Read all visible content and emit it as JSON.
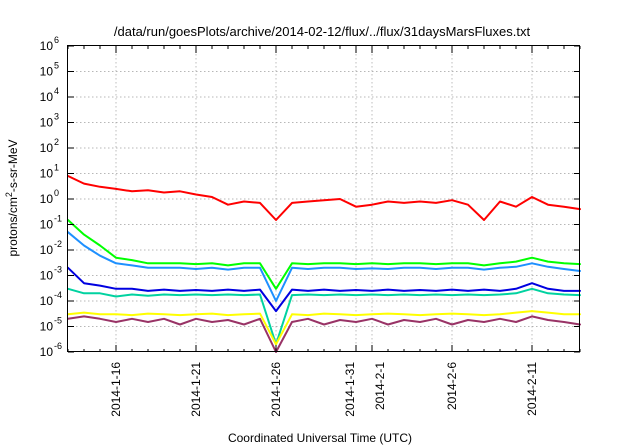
{
  "chart_data": {
    "type": "line",
    "title": "/data/run/goesPlots/archive/2014-02-12/flux/../flux/31daysMarsFluxes.txt",
    "xlabel": "Coordinated Universal Time (UTC)",
    "ylabel": "protons/cm2-s-sr-MeV",
    "ylabel_parts": {
      "before": "protons/cm",
      "sup": "2",
      "after": "-s-sr-MeV"
    },
    "yscale": "log",
    "ylim": [
      1e-06,
      1000000.0
    ],
    "xlim": [
      "2014-01-13",
      "2014-02-14"
    ],
    "grid": true,
    "legend": "none",
    "yticks": [
      {
        "exp": "-6",
        "value": 1e-06
      },
      {
        "exp": "-5",
        "value": 1e-05
      },
      {
        "exp": "-4",
        "value": 0.0001
      },
      {
        "exp": "-3",
        "value": 0.001
      },
      {
        "exp": "-2",
        "value": 0.01
      },
      {
        "exp": "-1",
        "value": 0.1
      },
      {
        "exp": "0",
        "value": 1
      },
      {
        "exp": "1",
        "value": 10
      },
      {
        "exp": "2",
        "value": 100
      },
      {
        "exp": "3",
        "value": 1000
      },
      {
        "exp": "4",
        "value": 10000
      },
      {
        "exp": "5",
        "value": 100000
      },
      {
        "exp": "6",
        "value": 1000000
      }
    ],
    "ytick_base": "10",
    "xticks": [
      {
        "date": "2014-01-16",
        "label": "2014-1-16"
      },
      {
        "date": "2014-01-21",
        "label": "2014-1-21"
      },
      {
        "date": "2014-01-26",
        "label": "2014-1-26"
      },
      {
        "date": "2014-01-31",
        "label": "2014-1-31"
      },
      {
        "date": "2014-02-01",
        "label": "2014-2-1"
      },
      {
        "date": "2014-02-06",
        "label": "2014-2-6"
      },
      {
        "date": "2014-02-11",
        "label": "2014-2-11"
      }
    ],
    "series": [
      {
        "color": "#ff0000",
        "x": [
          "2014-01-13",
          "2014-01-14",
          "2014-01-15",
          "2014-01-16",
          "2014-01-17",
          "2014-01-18",
          "2014-01-19",
          "2014-01-20",
          "2014-01-21",
          "2014-01-22",
          "2014-01-23",
          "2014-01-24",
          "2014-01-25",
          "2014-01-26",
          "2014-01-27",
          "2014-01-28",
          "2014-01-29",
          "2014-01-30",
          "2014-01-31",
          "2014-02-01",
          "2014-02-02",
          "2014-02-03",
          "2014-02-04",
          "2014-02-05",
          "2014-02-06",
          "2014-02-07",
          "2014-02-08",
          "2014-02-09",
          "2014-02-10",
          "2014-02-11",
          "2014-02-12",
          "2014-02-13",
          "2014-02-14"
        ],
        "y": [
          8,
          4,
          3,
          2.5,
          2,
          2.2,
          1.8,
          2,
          1.5,
          1.2,
          0.6,
          0.8,
          0.7,
          0.15,
          0.7,
          0.8,
          0.9,
          1,
          0.5,
          0.6,
          0.8,
          0.7,
          0.8,
          0.7,
          0.9,
          0.6,
          0.15,
          0.8,
          0.5,
          1.2,
          0.6,
          0.5,
          0.4
        ]
      },
      {
        "color": "#00ff00",
        "x": [
          "2014-01-13",
          "2014-01-14",
          "2014-01-15",
          "2014-01-16",
          "2014-01-17",
          "2014-01-18",
          "2014-01-19",
          "2014-01-20",
          "2014-01-21",
          "2014-01-22",
          "2014-01-23",
          "2014-01-24",
          "2014-01-25",
          "2014-01-26",
          "2014-01-27",
          "2014-01-28",
          "2014-01-29",
          "2014-01-30",
          "2014-01-31",
          "2014-02-01",
          "2014-02-02",
          "2014-02-03",
          "2014-02-04",
          "2014-02-05",
          "2014-02-06",
          "2014-02-07",
          "2014-02-08",
          "2014-02-09",
          "2014-02-10",
          "2014-02-11",
          "2014-02-12",
          "2014-02-13",
          "2014-02-14"
        ],
        "y": [
          0.15,
          0.04,
          0.015,
          0.005,
          0.004,
          0.003,
          0.003,
          0.003,
          0.0028,
          0.003,
          0.0025,
          0.003,
          0.003,
          0.0003,
          0.003,
          0.0028,
          0.003,
          0.003,
          0.0028,
          0.003,
          0.0028,
          0.003,
          0.003,
          0.0028,
          0.003,
          0.003,
          0.0025,
          0.003,
          0.0035,
          0.005,
          0.0035,
          0.003,
          0.0028
        ]
      },
      {
        "color": "#1e90ff",
        "x": [
          "2014-01-13",
          "2014-01-14",
          "2014-01-15",
          "2014-01-16",
          "2014-01-17",
          "2014-01-18",
          "2014-01-19",
          "2014-01-20",
          "2014-01-21",
          "2014-01-22",
          "2014-01-23",
          "2014-01-24",
          "2014-01-25",
          "2014-01-26",
          "2014-01-27",
          "2014-01-28",
          "2014-01-29",
          "2014-01-30",
          "2014-01-31",
          "2014-02-01",
          "2014-02-02",
          "2014-02-03",
          "2014-02-04",
          "2014-02-05",
          "2014-02-06",
          "2014-02-07",
          "2014-02-08",
          "2014-02-09",
          "2014-02-10",
          "2014-02-11",
          "2014-02-12",
          "2014-02-13",
          "2014-02-14"
        ],
        "y": [
          0.05,
          0.015,
          0.006,
          0.003,
          0.0025,
          0.002,
          0.002,
          0.002,
          0.0018,
          0.002,
          0.0017,
          0.002,
          0.002,
          0.0001,
          0.002,
          0.0018,
          0.002,
          0.002,
          0.0018,
          0.0019,
          0.0018,
          0.002,
          0.002,
          0.0018,
          0.002,
          0.002,
          0.0017,
          0.002,
          0.0022,
          0.003,
          0.0022,
          0.0018,
          0.0015
        ]
      },
      {
        "color": "#00d2a0",
        "x": [
          "2014-01-13",
          "2014-01-14",
          "2014-01-15",
          "2014-01-16",
          "2014-01-17",
          "2014-01-18",
          "2014-01-19",
          "2014-01-20",
          "2014-01-21",
          "2014-01-22",
          "2014-01-23",
          "2014-01-24",
          "2014-01-25",
          "2014-01-26",
          "2014-01-27",
          "2014-01-28",
          "2014-01-29",
          "2014-01-30",
          "2014-01-31",
          "2014-02-01",
          "2014-02-02",
          "2014-02-03",
          "2014-02-04",
          "2014-02-05",
          "2014-02-06",
          "2014-02-07",
          "2014-02-08",
          "2014-02-09",
          "2014-02-10",
          "2014-02-11",
          "2014-02-12",
          "2014-02-13",
          "2014-02-14"
        ],
        "y": [
          0.0003,
          0.0002,
          0.0002,
          0.00015,
          0.00018,
          0.00016,
          0.00018,
          0.00017,
          0.00018,
          0.00017,
          0.00018,
          0.00017,
          0.00018,
          2e-06,
          0.00017,
          0.00018,
          0.00017,
          0.00018,
          0.00017,
          0.00018,
          0.00017,
          0.00018,
          0.00017,
          0.00018,
          0.00017,
          0.00018,
          0.00017,
          0.00018,
          0.0002,
          0.0003,
          0.0002,
          0.00018,
          0.00017
        ]
      },
      {
        "color": "#0000e0",
        "x": [
          "2014-01-13",
          "2014-01-14",
          "2014-01-15",
          "2014-01-16",
          "2014-01-17",
          "2014-01-18",
          "2014-01-19",
          "2014-01-20",
          "2014-01-21",
          "2014-01-22",
          "2014-01-23",
          "2014-01-24",
          "2014-01-25",
          "2014-01-26",
          "2014-01-27",
          "2014-01-28",
          "2014-01-29",
          "2014-01-30",
          "2014-01-31",
          "2014-02-01",
          "2014-02-02",
          "2014-02-03",
          "2014-02-04",
          "2014-02-05",
          "2014-02-06",
          "2014-02-07",
          "2014-02-08",
          "2014-02-09",
          "2014-02-10",
          "2014-02-11",
          "2014-02-12",
          "2014-02-13",
          "2014-02-14"
        ],
        "y": [
          0.002,
          0.0005,
          0.0004,
          0.0003,
          0.0003,
          0.00025,
          0.00028,
          0.00025,
          0.00027,
          0.00025,
          0.00028,
          0.00025,
          0.00028,
          4e-05,
          0.00028,
          0.00025,
          0.00028,
          0.00025,
          0.00027,
          0.00025,
          0.00028,
          0.00025,
          0.00027,
          0.00025,
          0.00028,
          0.00025,
          0.00028,
          0.00025,
          0.0003,
          0.0005,
          0.0003,
          0.00025,
          0.00025
        ]
      },
      {
        "color": "#ffff00",
        "x": [
          "2014-01-13",
          "2014-01-14",
          "2014-01-15",
          "2014-01-16",
          "2014-01-17",
          "2014-01-18",
          "2014-01-19",
          "2014-01-20",
          "2014-01-21",
          "2014-01-22",
          "2014-01-23",
          "2014-01-24",
          "2014-01-25",
          "2014-01-26",
          "2014-01-27",
          "2014-01-28",
          "2014-01-29",
          "2014-01-30",
          "2014-01-31",
          "2014-02-01",
          "2014-02-02",
          "2014-02-03",
          "2014-02-04",
          "2014-02-05",
          "2014-02-06",
          "2014-02-07",
          "2014-02-08",
          "2014-02-09",
          "2014-02-10",
          "2014-02-11",
          "2014-02-12",
          "2014-02-13",
          "2014-02-14"
        ],
        "y": [
          3e-05,
          3.5e-05,
          3e-05,
          3e-05,
          2.8e-05,
          3.2e-05,
          3e-05,
          2.8e-05,
          3e-05,
          3.2e-05,
          2.8e-05,
          3e-05,
          3.2e-05,
          2e-06,
          3e-05,
          2.8e-05,
          3.2e-05,
          3e-05,
          2.8e-05,
          3e-05,
          3.2e-05,
          3e-05,
          2.8e-05,
          3e-05,
          3.2e-05,
          3e-05,
          2.8e-05,
          3e-05,
          3.5e-05,
          4e-05,
          3.5e-05,
          3e-05,
          3e-05
        ]
      },
      {
        "color": "#993366",
        "x": [
          "2014-01-13",
          "2014-01-14",
          "2014-01-15",
          "2014-01-16",
          "2014-01-17",
          "2014-01-18",
          "2014-01-19",
          "2014-01-20",
          "2014-01-21",
          "2014-01-22",
          "2014-01-23",
          "2014-01-24",
          "2014-01-25",
          "2014-01-26",
          "2014-01-27",
          "2014-01-28",
          "2014-01-29",
          "2014-01-30",
          "2014-01-31",
          "2014-02-01",
          "2014-02-02",
          "2014-02-03",
          "2014-02-04",
          "2014-02-05",
          "2014-02-06",
          "2014-02-07",
          "2014-02-08",
          "2014-02-09",
          "2014-02-10",
          "2014-02-11",
          "2014-02-12",
          "2014-02-13",
          "2014-02-14"
        ],
        "y": [
          2e-05,
          2.5e-05,
          2e-05,
          1.5e-05,
          2e-05,
          1.5e-05,
          2e-05,
          1.2e-05,
          2e-05,
          1.5e-05,
          1.8e-05,
          1.2e-05,
          2e-05,
          1e-06,
          1.5e-05,
          2e-05,
          1.2e-05,
          1.8e-05,
          1.5e-05,
          2e-05,
          1.2e-05,
          1.8e-05,
          1.5e-05,
          2e-05,
          1.2e-05,
          1.8e-05,
          1.5e-05,
          2e-05,
          1.5e-05,
          2.5e-05,
          1.8e-05,
          1.5e-05,
          1.2e-05
        ]
      }
    ]
  }
}
